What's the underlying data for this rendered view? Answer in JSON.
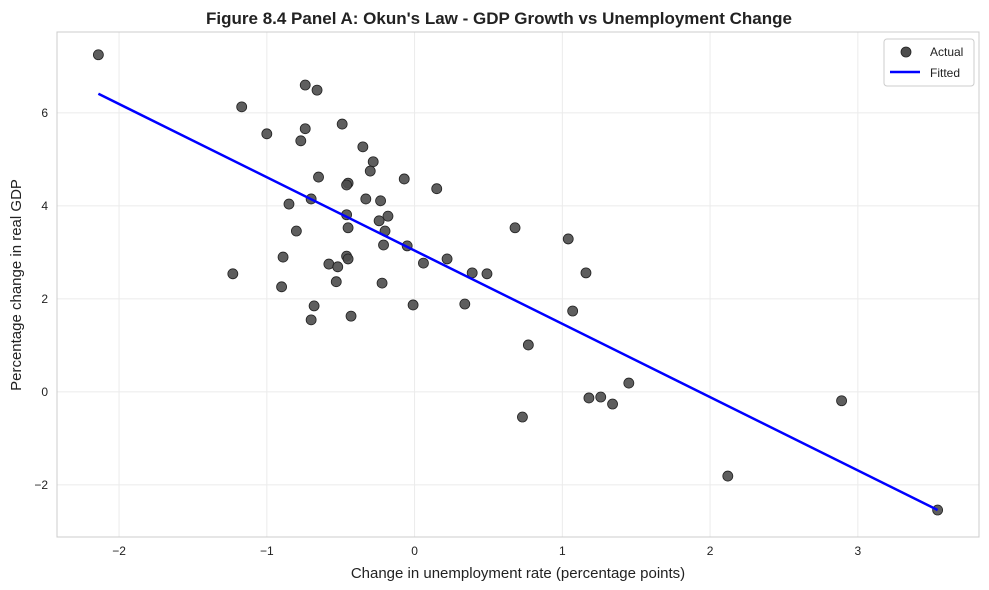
{
  "chart_data": {
    "type": "scatter",
    "title": "Figure 8.4 Panel A: Okun's Law - GDP Growth vs Unemployment Change",
    "xlabel": "Change in unemployment rate (percentage points)",
    "ylabel": "Percentage change in real GDP",
    "xlim": [
      -2.42,
      3.82
    ],
    "ylim": [
      -3.12,
      7.74
    ],
    "xticks": [
      -2,
      -1,
      0,
      1,
      2,
      3
    ],
    "xtick_labels": [
      "−2",
      "−1",
      "0",
      "1",
      "2",
      "3"
    ],
    "yticks": [
      -2,
      0,
      2,
      4,
      6
    ],
    "ytick_labels": [
      "−2",
      "0",
      "2",
      "4",
      "6"
    ],
    "grid": true,
    "legend": {
      "placement": "top-right",
      "entries": [
        "Actual",
        "Fitted"
      ]
    },
    "colors": {
      "points": "#4d4d4d",
      "line": "#0000ff"
    },
    "series": [
      {
        "name": "Actual",
        "points": [
          [
            -2.14,
            7.25
          ],
          [
            -1.17,
            6.13
          ],
          [
            -1.0,
            5.55
          ],
          [
            -0.74,
            6.6
          ],
          [
            -0.66,
            6.49
          ],
          [
            -0.74,
            5.66
          ],
          [
            -0.77,
            5.4
          ],
          [
            -0.49,
            5.76
          ],
          [
            -0.35,
            5.27
          ],
          [
            -0.28,
            4.95
          ],
          [
            -0.3,
            4.75
          ],
          [
            -0.65,
            4.62
          ],
          [
            -0.45,
            4.49
          ],
          [
            -0.46,
            4.45
          ],
          [
            -0.07,
            4.58
          ],
          [
            0.15,
            4.37
          ],
          [
            -0.7,
            4.15
          ],
          [
            -0.33,
            4.15
          ],
          [
            -0.23,
            4.11
          ],
          [
            -0.85,
            4.04
          ],
          [
            -0.46,
            3.81
          ],
          [
            -0.18,
            3.78
          ],
          [
            -0.24,
            3.68
          ],
          [
            -0.45,
            3.53
          ],
          [
            -0.2,
            3.46
          ],
          [
            -0.8,
            3.46
          ],
          [
            0.68,
            3.53
          ],
          [
            1.04,
            3.29
          ],
          [
            -0.05,
            3.14
          ],
          [
            -0.21,
            3.16
          ],
          [
            -0.46,
            2.92
          ],
          [
            -0.45,
            2.86
          ],
          [
            0.22,
            2.86
          ],
          [
            -0.89,
            2.9
          ],
          [
            -1.23,
            2.54
          ],
          [
            -0.58,
            2.75
          ],
          [
            -0.52,
            2.69
          ],
          [
            0.06,
            2.77
          ],
          [
            0.39,
            2.56
          ],
          [
            0.49,
            2.54
          ],
          [
            1.16,
            2.56
          ],
          [
            -0.9,
            2.26
          ],
          [
            -0.53,
            2.37
          ],
          [
            -0.22,
            2.34
          ],
          [
            -0.68,
            1.85
          ],
          [
            -0.01,
            1.87
          ],
          [
            0.34,
            1.89
          ],
          [
            1.07,
            1.74
          ],
          [
            -0.7,
            1.55
          ],
          [
            -0.43,
            1.63
          ],
          [
            0.77,
            1.01
          ],
          [
            1.45,
            0.19
          ],
          [
            1.18,
            -0.13
          ],
          [
            1.26,
            -0.11
          ],
          [
            1.34,
            -0.26
          ],
          [
            0.73,
            -0.54
          ],
          [
            2.89,
            -0.19
          ],
          [
            2.12,
            -1.81
          ],
          [
            3.54,
            -2.54
          ]
        ]
      },
      {
        "name": "Fitted",
        "slope": -1.576,
        "intercept": 3.04,
        "x_range": [
          -2.14,
          3.54
        ]
      }
    ]
  }
}
